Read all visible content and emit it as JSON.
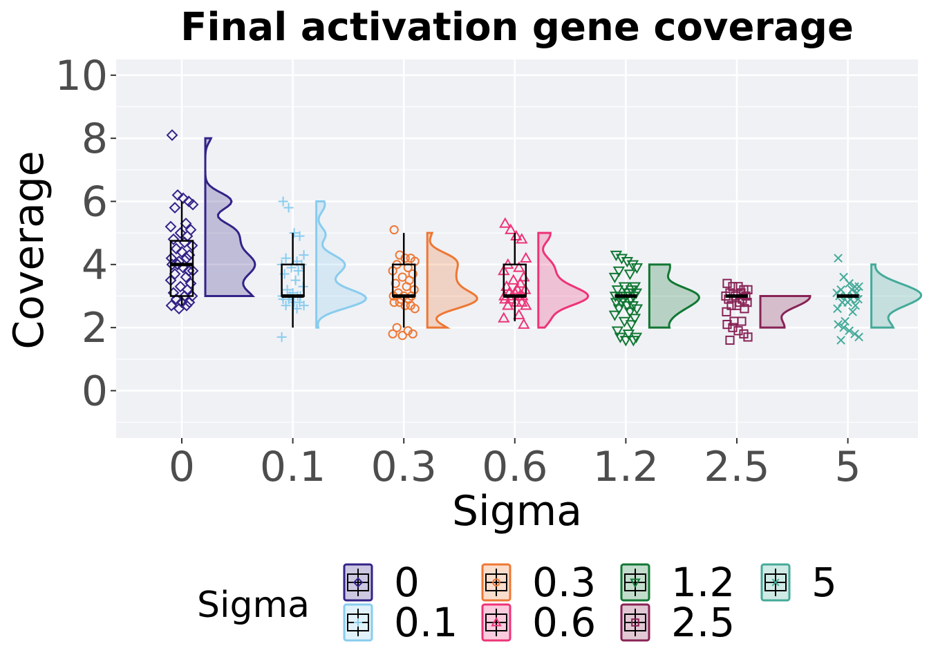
{
  "chart_data": {
    "type": "raincloud",
    "title": "Final activation gene coverage",
    "xlabel": "Sigma",
    "ylabel": "Coverage",
    "categories": [
      "0",
      "0.1",
      "0.3",
      "0.6",
      "1.2",
      "2.5",
      "5"
    ],
    "ylim": [
      -1.5,
      10.5
    ],
    "yticks": [
      0,
      2,
      4,
      6,
      8,
      10
    ],
    "grid": true,
    "legend": {
      "title": "Sigma",
      "position": "bottom"
    },
    "series": [
      {
        "name": "0",
        "color": "#332288",
        "shape": "diamond",
        "box": {
          "min": 2.7,
          "q1": 3.0,
          "median": 4.0,
          "q3": 4.75,
          "max": 6.0
        },
        "density": {
          "lo": 3.0,
          "hi": 8.0
        },
        "points": [
          8.1,
          6.2,
          6.1,
          6.0,
          5.9,
          5.8,
          5.3,
          5.2,
          5.1,
          5.0,
          4.9,
          4.8,
          4.7,
          4.6,
          4.5,
          4.4,
          4.3,
          4.2,
          4.2,
          4.1,
          4.0,
          4.0,
          3.9,
          3.8,
          3.8,
          3.7,
          3.6,
          3.5,
          3.4,
          3.3,
          3.2,
          3.1,
          3.0,
          3.0,
          2.9,
          2.8,
          2.8,
          2.7,
          2.7,
          2.6
        ]
      },
      {
        "name": "0.1",
        "color": "#88CCEE",
        "shape": "plus",
        "box": {
          "min": 2.0,
          "q1": 3.0,
          "median": 3.0,
          "q3": 4.0,
          "max": 5.0
        },
        "density": {
          "lo": 2.0,
          "hi": 6.0
        },
        "points": [
          6.0,
          5.8,
          5.0,
          4.9,
          4.3,
          4.2,
          4.1,
          4.0,
          4.0,
          3.9,
          3.8,
          3.7,
          3.5,
          3.3,
          3.2,
          3.1,
          3.0,
          3.0,
          3.0,
          3.0,
          2.9,
          2.9,
          2.8,
          2.8,
          2.7,
          2.7,
          2.6,
          1.7
        ]
      },
      {
        "name": "0.3",
        "color": "#EE7733",
        "shape": "circle",
        "box": {
          "min": 2.0,
          "q1": 3.0,
          "median": 3.0,
          "q3": 4.0,
          "max": 5.0
        },
        "density": {
          "lo": 2.0,
          "hi": 5.0
        },
        "points": [
          5.1,
          4.3,
          4.2,
          4.2,
          4.1,
          4.0,
          3.9,
          3.8,
          3.7,
          3.6,
          3.5,
          3.4,
          3.3,
          3.2,
          3.1,
          3.0,
          3.0,
          3.0,
          2.9,
          2.9,
          2.8,
          2.8,
          2.7,
          2.7,
          2.6,
          2.0,
          1.9,
          1.8,
          1.8,
          1.75
        ]
      },
      {
        "name": "0.6",
        "color": "#EE3377",
        "shape": "triangle",
        "box": {
          "min": 2.2,
          "q1": 3.0,
          "median": 3.0,
          "q3": 4.0,
          "max": 5.0
        },
        "density": {
          "lo": 2.0,
          "hi": 5.0
        },
        "points": [
          5.3,
          5.1,
          4.9,
          4.8,
          4.2,
          4.0,
          3.9,
          3.8,
          3.6,
          3.5,
          3.4,
          3.3,
          3.2,
          3.2,
          3.1,
          3.1,
          3.0,
          3.0,
          3.0,
          3.0,
          2.9,
          2.9,
          2.8,
          2.8,
          2.7,
          2.7,
          2.4,
          2.3,
          2.1
        ]
      },
      {
        "name": "1.2",
        "color": "#117733",
        "shape": "triangle-down",
        "box": {
          "min": 3.0,
          "q1": 3.0,
          "median": 3.0,
          "q3": 3.0,
          "max": 3.0
        },
        "density": {
          "lo": 2.0,
          "hi": 4.0
        },
        "points": [
          4.3,
          4.2,
          4.1,
          4.0,
          3.9,
          3.8,
          3.7,
          3.6,
          3.3,
          3.3,
          3.2,
          3.2,
          3.1,
          3.1,
          3.0,
          3.0,
          3.0,
          3.0,
          2.9,
          2.9,
          2.8,
          2.8,
          2.7,
          2.7,
          2.6,
          2.6,
          2.5,
          2.4,
          2.3,
          2.2,
          2.1,
          1.9,
          1.8,
          1.7,
          1.7,
          1.6,
          1.6
        ]
      },
      {
        "name": "2.5",
        "color": "#882255",
        "shape": "square",
        "box": {
          "min": 3.0,
          "q1": 3.0,
          "median": 3.0,
          "q3": 3.0,
          "max": 3.0
        },
        "density": {
          "lo": 2.0,
          "hi": 3.0
        },
        "points": [
          3.4,
          3.3,
          3.3,
          3.2,
          3.2,
          3.1,
          3.1,
          3.0,
          3.0,
          3.0,
          2.9,
          2.9,
          2.8,
          2.8,
          2.7,
          2.7,
          2.6,
          2.5,
          2.2,
          2.2,
          2.1,
          2.0,
          1.9,
          1.8,
          1.7,
          1.6
        ]
      },
      {
        "name": "5",
        "color": "#44AA99",
        "shape": "cross",
        "box": {
          "min": 3.0,
          "q1": 3.0,
          "median": 3.0,
          "q3": 3.0,
          "max": 3.0
        },
        "density": {
          "lo": 2.0,
          "hi": 4.0
        },
        "points": [
          4.2,
          3.6,
          3.4,
          3.3,
          3.3,
          3.2,
          3.2,
          3.1,
          3.1,
          3.0,
          3.0,
          3.0,
          2.9,
          2.9,
          2.8,
          2.8,
          2.7,
          2.6,
          2.5,
          2.2,
          2.1,
          2.0,
          1.9,
          1.8,
          1.7,
          1.6
        ]
      }
    ]
  }
}
